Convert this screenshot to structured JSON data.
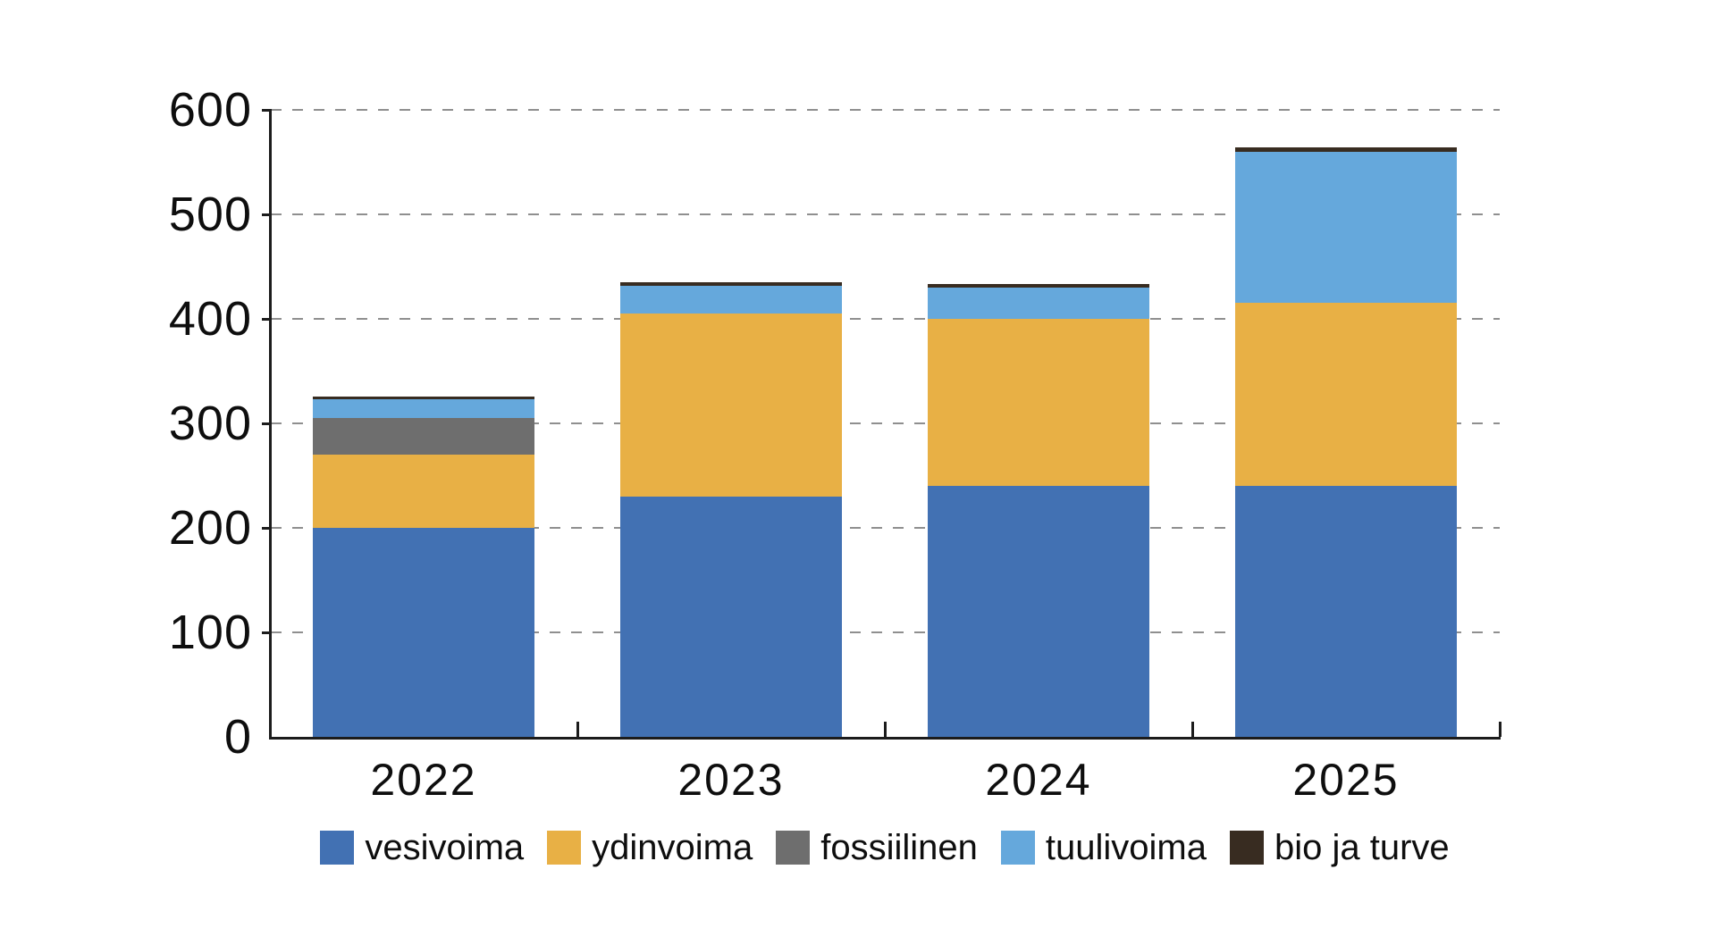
{
  "chart_data": {
    "type": "bar",
    "stacked": true,
    "title": "",
    "xlabel": "",
    "ylabel": "",
    "categories": [
      "2022",
      "2023",
      "2024",
      "2025"
    ],
    "series": [
      {
        "name": "vesivoima",
        "color": "#4271b3",
        "values": [
          200,
          230,
          240,
          240
        ]
      },
      {
        "name": "ydinvoima",
        "color": "#e8b045",
        "values": [
          70,
          175,
          160,
          175
        ]
      },
      {
        "name": "fossiilinen",
        "color": "#6e6e6e",
        "values": [
          35,
          0,
          0,
          0
        ]
      },
      {
        "name": "tuulivoima",
        "color": "#65a8dc",
        "values": [
          18,
          27,
          30,
          145
        ]
      },
      {
        "name": "bio ja turve",
        "color": "#382c21",
        "values": [
          3,
          3,
          3,
          4
        ]
      }
    ],
    "stack_totals": [
      326,
      435,
      433,
      564
    ],
    "ylim": [
      0,
      600
    ],
    "yticks": [
      0,
      100,
      200,
      300,
      400,
      500,
      600
    ],
    "ytick_labels": [
      "0",
      "100",
      "200",
      "300",
      "400",
      "500",
      "600"
    ],
    "grid": "horizontal-dashed",
    "legend_position": "bottom",
    "colors": {
      "axis": "#1c1c1c",
      "gridline": "#8f8f8f",
      "text": "#0e0e0e",
      "background": "#ffffff"
    }
  }
}
